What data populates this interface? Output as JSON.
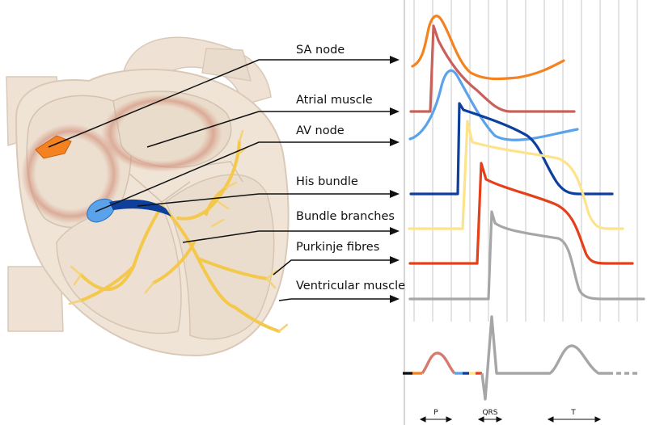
{
  "labels": [
    {
      "text": "SA node"
    },
    {
      "text": "Atrial muscle"
    },
    {
      "text": "AV node"
    },
    {
      "text": "His bundle"
    },
    {
      "text": "Bundle branches"
    },
    {
      "text": "Purkinje fibres"
    },
    {
      "text": "Ventricular muscle"
    }
  ],
  "ecg_labels": {
    "p": "P",
    "qrs": "QRS",
    "t": "T"
  },
  "colors": {
    "sa_node": "#f58220",
    "atrial_muscle": "#c9605a",
    "av_node": "#5aa2ea",
    "his_bundle": "#0d3f9c",
    "bundle_branches": "#fde48a",
    "purkinje_fibres": "#e5401a",
    "ventricular_muscle": "#a6a6a6",
    "conduction_system": "#f3c84b",
    "heart_tissue": "#f0e4d7"
  }
}
